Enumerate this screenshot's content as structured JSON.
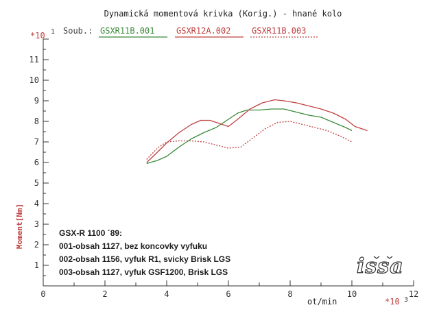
{
  "chart_data": {
    "type": "line",
    "title": "Dynamická momentová krivka (Korig.)  - hnané kolo",
    "files_label": "Soub.:",
    "xlabel": "ot/min",
    "ylabel": "Moment[Nm]",
    "x_multiplier": "*10",
    "x_multiplier_exp": "3",
    "y_multiplier": "*10",
    "y_multiplier_exp": "1",
    "xlim": [
      0,
      12
    ],
    "ylim": [
      0,
      12
    ],
    "x_ticks": [
      0,
      2,
      4,
      6,
      8,
      10,
      12
    ],
    "y_ticks": [
      1,
      2,
      3,
      4,
      5,
      6,
      7,
      8,
      9,
      10,
      11
    ],
    "grid": false,
    "legend_position": "top",
    "series": [
      {
        "name": "GSXR11B.001",
        "color": "#3a8a3a",
        "style": "solid",
        "x": [
          3.35,
          3.7,
          4.0,
          4.4,
          4.8,
          5.2,
          5.6,
          6.0,
          6.3,
          6.6,
          7.0,
          7.4,
          7.8,
          8.2,
          8.6,
          9.0,
          9.4,
          9.8,
          10.0
        ],
        "y": [
          5.95,
          6.1,
          6.3,
          6.75,
          7.15,
          7.45,
          7.7,
          8.1,
          8.4,
          8.55,
          8.55,
          8.6,
          8.6,
          8.45,
          8.3,
          8.2,
          7.95,
          7.7,
          7.55
        ]
      },
      {
        "name": "GSXR12A.002",
        "color": "#c04040",
        "style": "solid",
        "x": [
          3.35,
          3.7,
          4.0,
          4.4,
          4.8,
          5.1,
          5.4,
          5.7,
          6.0,
          6.3,
          6.7,
          7.1,
          7.5,
          7.8,
          8.2,
          8.6,
          9.0,
          9.4,
          9.8,
          10.1,
          10.5
        ],
        "y": [
          6.0,
          6.5,
          6.95,
          7.45,
          7.85,
          8.05,
          8.05,
          7.9,
          7.75,
          8.1,
          8.6,
          8.9,
          9.05,
          9.0,
          8.9,
          8.75,
          8.6,
          8.4,
          8.1,
          7.75,
          7.55
        ]
      },
      {
        "name": "GSXR11B.003",
        "color": "#c04040",
        "style": "dotted",
        "x": [
          3.35,
          3.7,
          4.0,
          4.4,
          4.8,
          5.2,
          5.6,
          6.0,
          6.4,
          6.8,
          7.2,
          7.6,
          8.0,
          8.4,
          8.8,
          9.2,
          9.6,
          10.0
        ],
        "y": [
          6.15,
          6.7,
          7.0,
          7.05,
          7.05,
          7.0,
          6.85,
          6.7,
          6.75,
          7.2,
          7.65,
          7.95,
          8.0,
          7.85,
          7.7,
          7.55,
          7.3,
          7.0
        ]
      }
    ],
    "annotations": [
      "GSX-R 1100 ´89:",
      "001-obsah 1127, bez koncovky vyfuku",
      "002-obsah 1156, vyfuk R1, svicky Brisk LGS",
      "003-obsah 1127, vyfuk GSF1200, Brisk LGS"
    ],
    "watermark": "issa"
  }
}
